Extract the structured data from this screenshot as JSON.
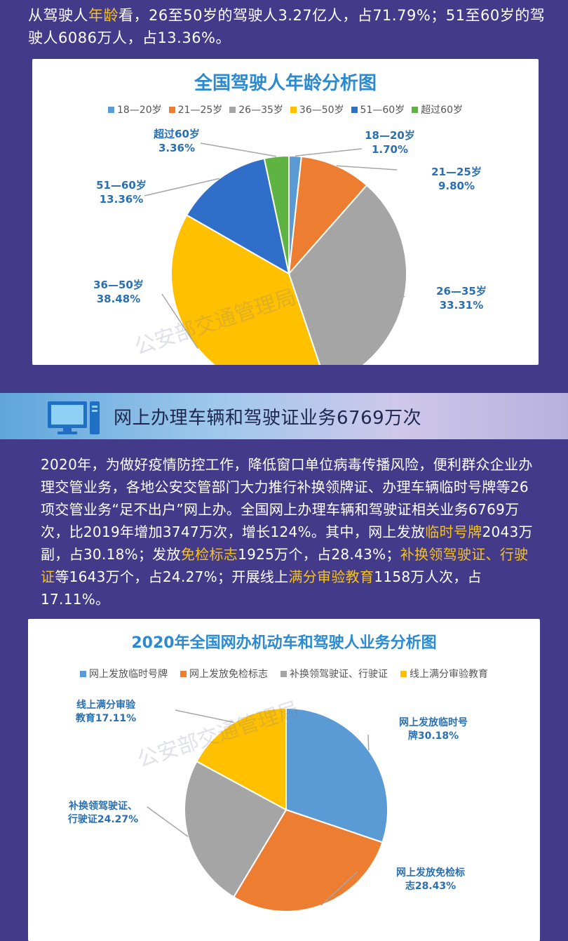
{
  "top_paragraph": {
    "part1": "从驾驶人",
    "hl1": "年龄",
    "part2": "看，26至50岁的驾驶人3.27亿人，占71.79%；51至60岁的驾驶人6086万人，占13.36%。"
  },
  "banner": {
    "icon": "computer-monitor-icon",
    "title": "网上办理车辆和驾驶证业务6769万次"
  },
  "body_paragraph": {
    "p1": "2020年，为做好疫情防控工作，降低窗口单位病毒传播风险，便利群众企业办理交管业务，各地公安交管部门大力推行补换领牌证、办理车辆临时号牌等26项交管业务“足不出户”网上办。全国网上办理车辆和驾驶证相关业务6769万次，比2019年增加3747万次，增长124%。其中，网上发放",
    "h1": "临时号牌",
    "p2": "2043万副，占30.18%；发放",
    "h2": "免检标志",
    "p3": "1925万个，占28.43%；",
    "h3": "补换领驾驶证、行驶证",
    "p4": "等1643万个，占24.27%；开展线上",
    "h4": "满分审验教育",
    "p5": "1158万人次，占17.11%。"
  },
  "watermark_text": "公安部交通管理局",
  "colors": {
    "background": "#433b8a",
    "highlight": "#f5c21b",
    "title_blue": "#2b8ad0",
    "label_blue": "#2a6fb0"
  },
  "chart_data": [
    {
      "type": "pie",
      "title": "全国驾驶人年龄分析图",
      "legend_position": "top",
      "categories": [
        "18—20岁",
        "21—25岁",
        "26—35岁",
        "36—50岁",
        "51—60岁",
        "超过60岁"
      ],
      "values": [
        1.7,
        9.8,
        33.31,
        38.48,
        13.36,
        3.36
      ],
      "value_labels": [
        "1.70%",
        "9.80%",
        "33.31%",
        "38.48%",
        "13.36%",
        "3.36%"
      ],
      "slice_labels": [
        "18—20岁",
        "21—25岁",
        "26—35岁",
        "36—50岁",
        "51—60岁",
        "超过60岁"
      ],
      "colors": [
        "#5b9bd5",
        "#ed7d31",
        "#a5a5a5",
        "#ffc000",
        "#2f6fc9",
        "#5fb342"
      ]
    },
    {
      "type": "pie",
      "title": "2020年全国网办机动车和驾驶人业务分析图",
      "legend_position": "top",
      "categories": [
        "网上发放临时号牌",
        "网上发放免检标志",
        "补换领驾驶证、行驶证",
        "线上满分审验教育"
      ],
      "values": [
        30.18,
        28.43,
        24.27,
        17.11
      ],
      "value_labels": [
        "30.18%",
        "28.43%",
        "24.27%",
        "17.11%"
      ],
      "slice_labels": [
        "网上发放临时号牌30.18%",
        "网上发放免检标志28.43%",
        "补换领驾驶证、行驶证24.27%",
        "线上满分审验教育17.11%"
      ],
      "colors": [
        "#5b9bd5",
        "#ed7d31",
        "#a5a5a5",
        "#ffc000"
      ]
    }
  ]
}
